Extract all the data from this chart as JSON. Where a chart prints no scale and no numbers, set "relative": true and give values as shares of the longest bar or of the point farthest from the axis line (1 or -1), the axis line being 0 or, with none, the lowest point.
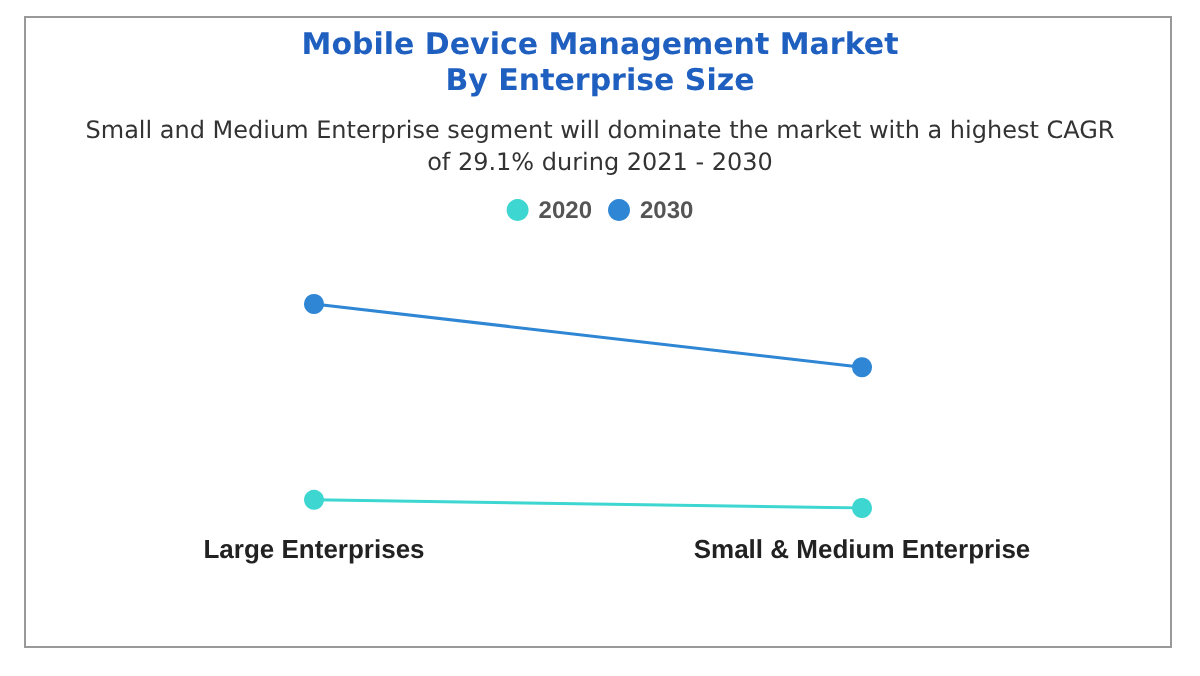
{
  "chart_data": {
    "type": "line",
    "title": "Mobile Device Management Market\nBy Enterprise Size",
    "subtitle": "Small and Medium Enterprise segment will dominate the market with a highest CAGR\nof 29.1% during 2021 - 2030",
    "categories": [
      "Large Enterprises",
      "Small & Medium Enterprise"
    ],
    "relative": true,
    "legend": "top",
    "marker": "circle",
    "line_style": "solid",
    "series": [
      {
        "name": "2020",
        "color": "#3dd6d0",
        "values": [
          0.04,
          0
        ]
      },
      {
        "name": "2030",
        "color": "#2e86d4",
        "values": [
          1,
          0.69
        ]
      }
    ]
  }
}
